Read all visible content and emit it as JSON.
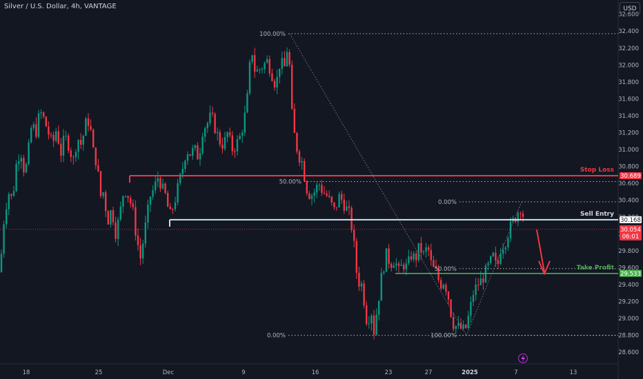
{
  "header": {
    "symbol_title": "Silver / U.S. Dollar, 4h, VANTAGE",
    "currency_button": "USD"
  },
  "colors": {
    "background": "#131722",
    "up_candle": "#089981",
    "down_candle": "#f23645",
    "stop_loss": "#f23645",
    "sell_entry": "#d1d4dc",
    "take_profit": "#4caf50",
    "grid_text": "#b2b5be"
  },
  "icons": {
    "watermark": "lightning-logo-icon"
  },
  "chart_data": {
    "type": "candlestick",
    "title": "Silver / U.S. Dollar, 4h, VANTAGE",
    "xlabel": "",
    "ylabel": "",
    "ylim": [
      28.52,
      32.72
    ],
    "y_ticks": [
      "32.600",
      "32.400",
      "32.200",
      "32.000",
      "31.800",
      "31.600",
      "31.400",
      "31.200",
      "31.000",
      "30.800",
      "30.600",
      "30.400",
      "30.200",
      "30.000",
      "29.800",
      "29.600",
      "29.400",
      "29.200",
      "29.000",
      "28.800",
      "28.600"
    ],
    "x_ticks": [
      "18",
      "25",
      "Dec",
      "9",
      "16",
      "23",
      "27",
      "2025",
      "7",
      "13"
    ],
    "price_path": [
      [
        0,
        29.55
      ],
      [
        6,
        30.2
      ],
      [
        12,
        30.5
      ],
      [
        18,
        30.4
      ],
      [
        24,
        30.85
      ],
      [
        30,
        31.0
      ],
      [
        36,
        30.7
      ],
      [
        40,
        30.9
      ],
      [
        46,
        31.3
      ],
      [
        52,
        31.2
      ],
      [
        58,
        31.45
      ],
      [
        64,
        31.35
      ],
      [
        70,
        31.2
      ],
      [
        76,
        31.05
      ],
      [
        82,
        31.25
      ],
      [
        88,
        30.95
      ],
      [
        94,
        31.15
      ],
      [
        100,
        31.05
      ],
      [
        106,
        30.85
      ],
      [
        112,
        31.15
      ],
      [
        118,
        31.05
      ],
      [
        124,
        31.3
      ],
      [
        130,
        31.35
      ],
      [
        134,
        31.0
      ],
      [
        140,
        30.85
      ],
      [
        146,
        30.45
      ],
      [
        150,
        30.5
      ],
      [
        156,
        30.15
      ],
      [
        162,
        30.3
      ],
      [
        168,
        30.0
      ],
      [
        174,
        30.25
      ],
      [
        180,
        30.55
      ],
      [
        186,
        30.45
      ],
      [
        192,
        30.3
      ],
      [
        198,
        29.95
      ],
      [
        204,
        29.7
      ],
      [
        208,
        29.95
      ],
      [
        214,
        30.25
      ],
      [
        218,
        30.45
      ],
      [
        224,
        30.55
      ],
      [
        230,
        30.7
      ],
      [
        234,
        30.55
      ],
      [
        240,
        30.45
      ],
      [
        246,
        30.2
      ],
      [
        252,
        30.35
      ],
      [
        258,
        30.55
      ],
      [
        264,
        30.75
      ],
      [
        270,
        31.0
      ],
      [
        276,
        30.95
      ],
      [
        282,
        31.0
      ],
      [
        288,
        30.9
      ],
      [
        294,
        31.25
      ],
      [
        300,
        31.3
      ],
      [
        306,
        31.4
      ],
      [
        312,
        31.25
      ],
      [
        318,
        31.1
      ],
      [
        324,
        31.05
      ],
      [
        330,
        31.2
      ],
      [
        336,
        31.0
      ],
      [
        342,
        31.05
      ],
      [
        348,
        31.15
      ],
      [
        354,
        31.35
      ],
      [
        360,
        31.7
      ],
      [
        364,
        32.25
      ],
      [
        370,
        31.9
      ],
      [
        376,
        31.95
      ],
      [
        382,
        32.0
      ],
      [
        388,
        32.05
      ],
      [
        394,
        31.9
      ],
      [
        400,
        31.75
      ],
      [
        406,
        32.05
      ],
      [
        412,
        31.95
      ],
      [
        418,
        32.3
      ],
      [
        422,
        31.5
      ],
      [
        426,
        31.2
      ],
      [
        432,
        30.95
      ],
      [
        438,
        30.85
      ],
      [
        444,
        30.55
      ],
      [
        450,
        30.45
      ],
      [
        456,
        30.5
      ],
      [
        462,
        30.6
      ],
      [
        468,
        30.5
      ],
      [
        474,
        30.45
      ],
      [
        480,
        30.35
      ],
      [
        486,
        30.25
      ],
      [
        490,
        30.45
      ],
      [
        496,
        30.4
      ],
      [
        502,
        30.3
      ],
      [
        508,
        30.2
      ],
      [
        514,
        29.8
      ],
      [
        518,
        29.45
      ],
      [
        524,
        29.4
      ],
      [
        528,
        29.2
      ],
      [
        532,
        28.95
      ],
      [
        538,
        29.1
      ],
      [
        542,
        28.85
      ],
      [
        548,
        29.2
      ],
      [
        554,
        29.55
      ],
      [
        560,
        29.75
      ],
      [
        566,
        29.65
      ],
      [
        572,
        29.7
      ],
      [
        578,
        29.55
      ],
      [
        584,
        29.65
      ],
      [
        590,
        29.6
      ],
      [
        596,
        29.75
      ],
      [
        602,
        29.7
      ],
      [
        608,
        29.85
      ],
      [
        614,
        29.75
      ],
      [
        620,
        29.85
      ],
      [
        626,
        29.6
      ],
      [
        632,
        29.55
      ],
      [
        638,
        29.4
      ],
      [
        644,
        29.45
      ],
      [
        650,
        29.25
      ],
      [
        656,
        28.95
      ],
      [
        662,
        28.9
      ],
      [
        668,
        28.88
      ],
      [
        674,
        28.85
      ],
      [
        680,
        29.05
      ],
      [
        686,
        29.3
      ],
      [
        692,
        29.4
      ],
      [
        698,
        29.45
      ],
      [
        704,
        29.55
      ],
      [
        710,
        29.65
      ],
      [
        716,
        29.75
      ],
      [
        720,
        29.55
      ],
      [
        726,
        29.85
      ],
      [
        732,
        29.9
      ],
      [
        738,
        30.05
      ],
      [
        744,
        30.15
      ],
      [
        750,
        30.25
      ],
      [
        756,
        30.35
      ],
      [
        760,
        30.1
      ]
    ],
    "levels": {
      "stop_loss": {
        "label": "Stop Loss",
        "price_tag": "30.689",
        "value": 30.689
      },
      "sell_entry": {
        "label": "Sell Entry",
        "price_tag": "30.168",
        "value": 30.168
      },
      "take_profit": {
        "label": "Take Profit",
        "price_tag": "29.533",
        "value": 29.533
      },
      "current_price": {
        "price_tag": "30.054",
        "countdown": "06:01",
        "value": 30.054
      }
    },
    "fib_large": {
      "labels": [
        "100.00%",
        "50.00%",
        "0.00%"
      ],
      "values": [
        32.37,
        30.62,
        28.8
      ]
    },
    "fib_small": {
      "labels": [
        "0.00%",
        "50.00%",
        "100.00%"
      ],
      "values": [
        30.38,
        29.59,
        28.8
      ]
    }
  }
}
